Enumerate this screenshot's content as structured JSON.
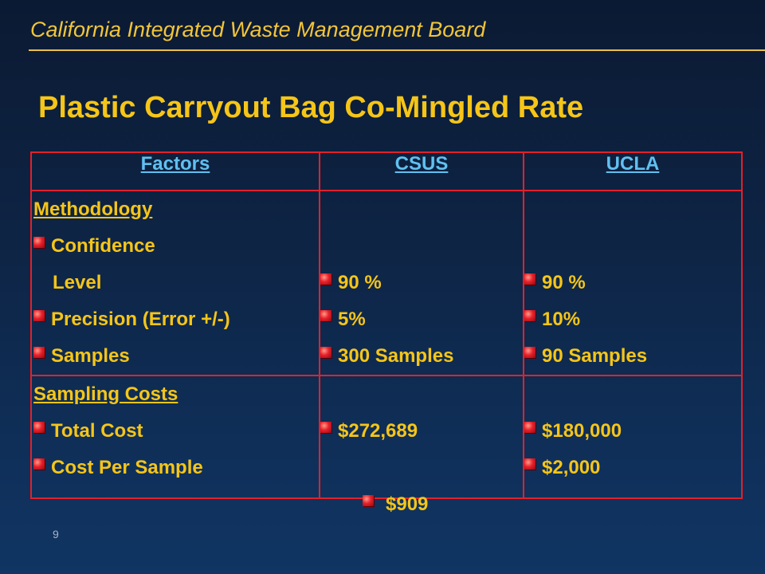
{
  "header": {
    "org": "California Integrated Waste Management Board",
    "title": "Plastic Carryout Bag Co-Mingled Rate"
  },
  "table": {
    "columns": [
      "Factors",
      "CSUS",
      "UCLA"
    ],
    "methodology": {
      "label": "Methodology",
      "rows": [
        {
          "factor": "Confidence"
        },
        {
          "factor": "Level",
          "csus": "90 %",
          "ucla": "90 %"
        },
        {
          "factor": "Precision (Error +/-)",
          "csus": "5%",
          "ucla": "10%"
        },
        {
          "factor": "Samples",
          "csus": "300 Samples",
          "ucla": "90 Samples"
        }
      ]
    },
    "costs": {
      "label": "Sampling Costs",
      "rows": [
        {
          "factor": "Total Cost",
          "csus": "$272,689",
          "ucla": "$180,000"
        },
        {
          "factor": "Cost Per Sample",
          "csus": " $909",
          "ucla": "$2,000"
        }
      ]
    }
  },
  "footer": {
    "page_number": "9"
  },
  "colors": {
    "text": "#f5c518",
    "header_link": "#60c0f0",
    "border": "#e3202a",
    "background": "#0e2546"
  }
}
